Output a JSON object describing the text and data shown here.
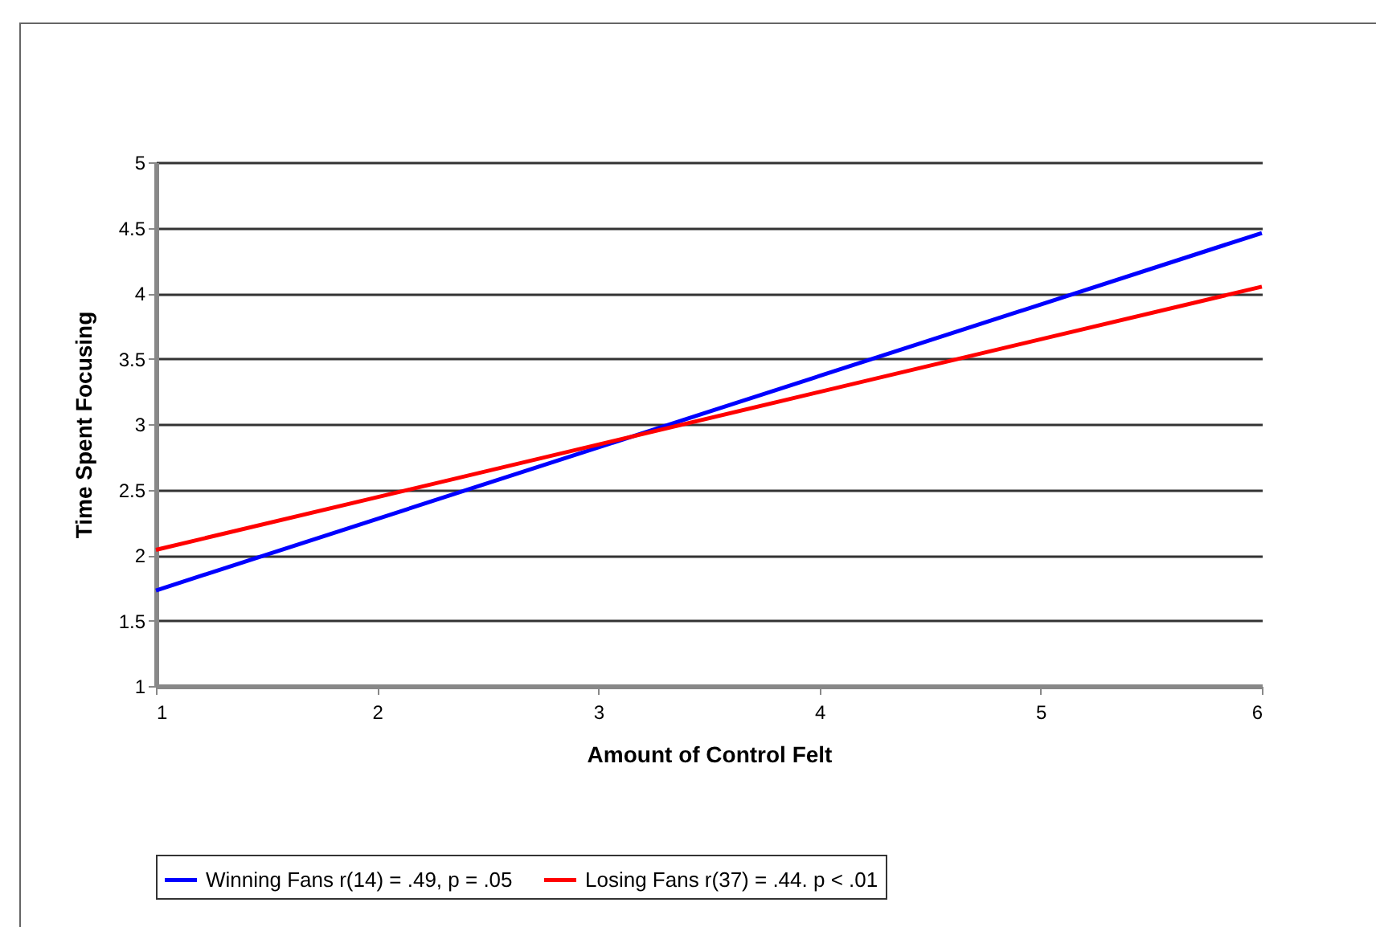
{
  "chart_data": {
    "type": "line",
    "xlabel": "Amount of Control Felt",
    "ylabel": "Time Spent Focusing",
    "x": [
      1,
      6
    ],
    "series": [
      {
        "name": "Winning Fans r(14) = .49, p = .05",
        "color": "#0000ff",
        "values": [
          1.73,
          4.46
        ]
      },
      {
        "name": "Losing Fans r(37) = .44. p < .01",
        "color": "#ff0000",
        "values": [
          2.04,
          4.05
        ]
      }
    ],
    "xlim": [
      1,
      6
    ],
    "xticks": [
      1,
      2,
      3,
      4,
      5,
      6
    ],
    "ylim": [
      1,
      5
    ],
    "yticks": [
      1,
      1.5,
      2,
      2.5,
      3,
      3.5,
      4,
      4.5,
      5
    ],
    "grid": "y",
    "legend": "bottom",
    "marker": "none",
    "line_style": "solid"
  }
}
